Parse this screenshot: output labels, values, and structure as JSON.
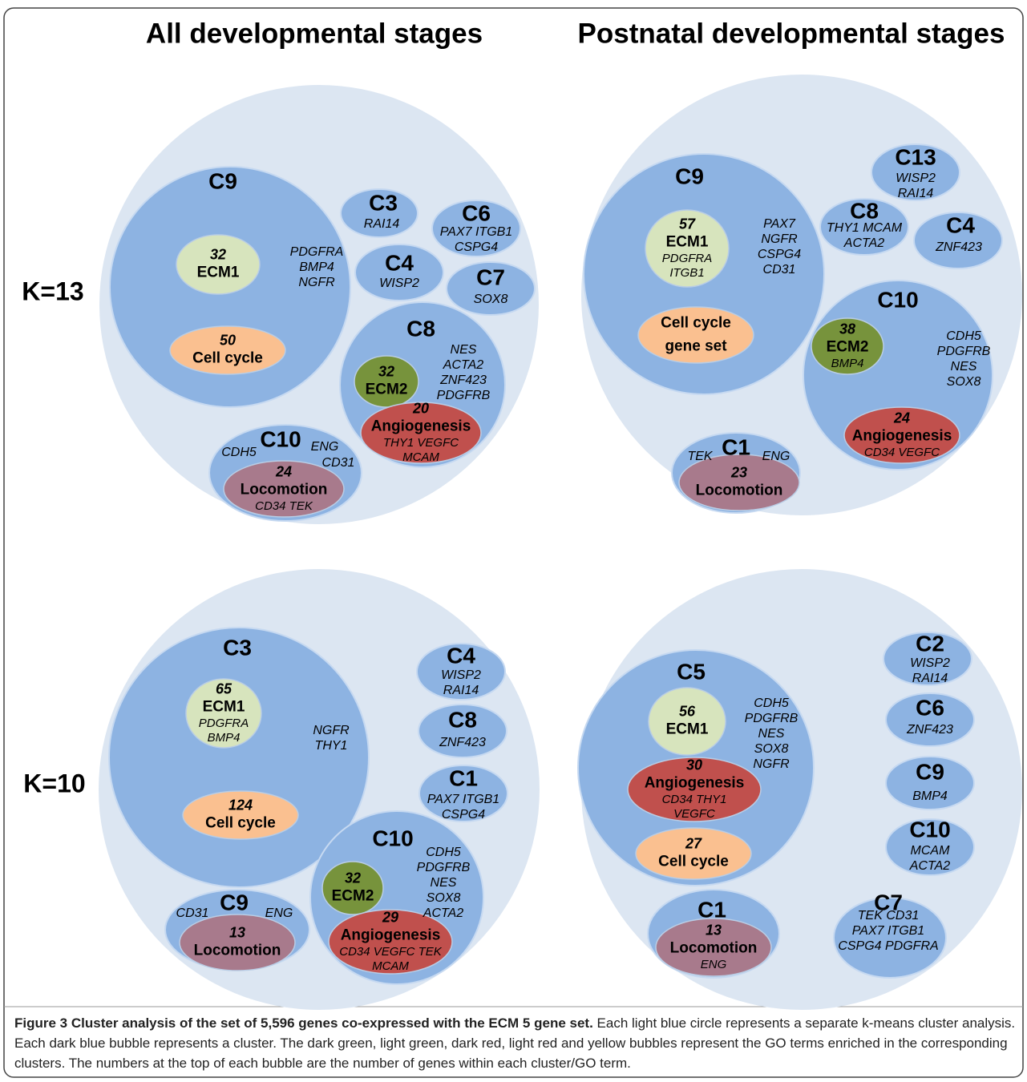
{
  "header": {
    "col_titles": [
      "All developmental stages",
      "Postnatal developmental stages"
    ],
    "row_labels": [
      "K=13",
      "K=10"
    ]
  },
  "panels": [
    {
      "clusters": [
        {
          "name": "C9",
          "genes": [
            "PDGFRA",
            "BMP4",
            "NGFR"
          ],
          "terms": [
            {
              "count": 32,
              "name": "ECM1"
            },
            {
              "count": 50,
              "name": "Cell cycle"
            }
          ]
        },
        {
          "name": "C3",
          "genes": [
            "RAI14"
          ]
        },
        {
          "name": "C6",
          "genes": [
            "PAX7 ITGB1",
            "CSPG4"
          ]
        },
        {
          "name": "C4",
          "genes": [
            "WISP2"
          ]
        },
        {
          "name": "C7",
          "genes": [
            "SOX8"
          ]
        },
        {
          "name": "C8",
          "genes": [
            "NES",
            "ACTA2",
            "ZNF423",
            "PDGFRB"
          ],
          "terms": [
            {
              "count": 32,
              "name": "ECM2"
            },
            {
              "count": 20,
              "name": "Angiogenesis",
              "genes": [
                "THY1  VEGFC",
                "MCAM"
              ]
            }
          ]
        },
        {
          "name": "C10",
          "genes": [
            "CDH5",
            "ENG",
            "CD31"
          ],
          "terms": [
            {
              "count": 24,
              "name": "Locomotion",
              "genes": [
                "CD34  TEK"
              ]
            }
          ]
        }
      ]
    },
    {
      "clusters": [
        {
          "name": "C9",
          "genes": [
            "PAX7",
            "NGFR",
            "CSPG4",
            "CD31"
          ],
          "terms": [
            {
              "count": 57,
              "name": "ECM1",
              "genes": [
                "PDGFRA",
                "ITGB1"
              ]
            },
            {
              "name": [
                "Cell cycle",
                "gene set"
              ]
            }
          ]
        },
        {
          "name": "C13",
          "genes": [
            "WISP2",
            "RAI14"
          ]
        },
        {
          "name": "C8",
          "genes": [
            "THY1 MCAM",
            "ACTA2"
          ]
        },
        {
          "name": "C4",
          "genes": [
            "ZNF423"
          ]
        },
        {
          "name": "C10",
          "genes": [
            "CDH5",
            "PDGFRB",
            "NES",
            "SOX8"
          ],
          "terms": [
            {
              "count": 38,
              "name": "ECM2",
              "genes": [
                "BMP4"
              ]
            },
            {
              "count": 24,
              "name": "Angiogenesis",
              "genes": [
                "CD34  VEGFC"
              ]
            }
          ]
        },
        {
          "name": "C1",
          "genes": [
            "TEK",
            "ENG"
          ],
          "terms": [
            {
              "count": 23,
              "name": "Locomotion"
            }
          ]
        }
      ]
    },
    {
      "clusters": [
        {
          "name": "C3",
          "genes": [
            "NGFR",
            "THY1"
          ],
          "terms": [
            {
              "count": 65,
              "name": "ECM1",
              "genes": [
                "PDGFRA",
                "BMP4"
              ]
            },
            {
              "count": 124,
              "name": "Cell cycle"
            }
          ]
        },
        {
          "name": "C4",
          "genes": [
            "WISP2",
            "RAI14"
          ]
        },
        {
          "name": "C8",
          "genes": [
            "ZNF423"
          ]
        },
        {
          "name": "C1",
          "genes": [
            "PAX7 ITGB1",
            "CSPG4"
          ]
        },
        {
          "name": "C10",
          "genes": [
            "CDH5",
            "PDGFRB",
            "NES",
            "SOX8",
            "ACTA2"
          ],
          "terms": [
            {
              "count": 32,
              "name": "ECM2"
            },
            {
              "count": 29,
              "name": "Angiogenesis",
              "genes": [
                "CD34   VEGFC  TEK",
                "MCAM"
              ]
            }
          ]
        },
        {
          "name": "C9",
          "genes": [
            "CD31",
            "ENG"
          ],
          "terms": [
            {
              "count": 13,
              "name": "Locomotion"
            }
          ]
        }
      ]
    },
    {
      "clusters": [
        {
          "name": "C5",
          "genes": [
            "CDH5",
            "PDGFRB",
            "NES",
            "SOX8",
            "NGFR"
          ],
          "terms": [
            {
              "count": 56,
              "name": "ECM1"
            },
            {
              "count": 30,
              "name": "Angiogenesis",
              "genes": [
                "CD34  THY1",
                "VEGFC"
              ]
            },
            {
              "count": 27,
              "name": "Cell cycle"
            }
          ]
        },
        {
          "name": "C2",
          "genes": [
            "WISP2",
            "RAI14"
          ]
        },
        {
          "name": "C6",
          "genes": [
            "ZNF423"
          ]
        },
        {
          "name": "C9",
          "genes": [
            "BMP4"
          ]
        },
        {
          "name": "C10",
          "genes": [
            "MCAM",
            "ACTA2"
          ]
        },
        {
          "name": "C7",
          "genes": [
            "TEK  CD31",
            "PAX7  ITGB1",
            "CSPG4  PDGFRA"
          ]
        },
        {
          "name": "C1",
          "terms": [
            {
              "count": 13,
              "name": "Locomotion",
              "genes": [
                "ENG"
              ]
            }
          ]
        }
      ]
    }
  ],
  "caption": {
    "label": "Figure 3",
    "title": "Cluster analysis of the set of 5,596 genes co-expressed with the ECM 5 gene set.",
    "text": "Each light blue circle represents a separate k-means cluster analysis. Each dark blue bubble represents a cluster. The dark green, light green, dark red, light red and yellow bubbles represent the GO terms enriched in the corresponding clusters. The numbers at the top of each bubble are the number of genes within each cluster/GO term."
  }
}
